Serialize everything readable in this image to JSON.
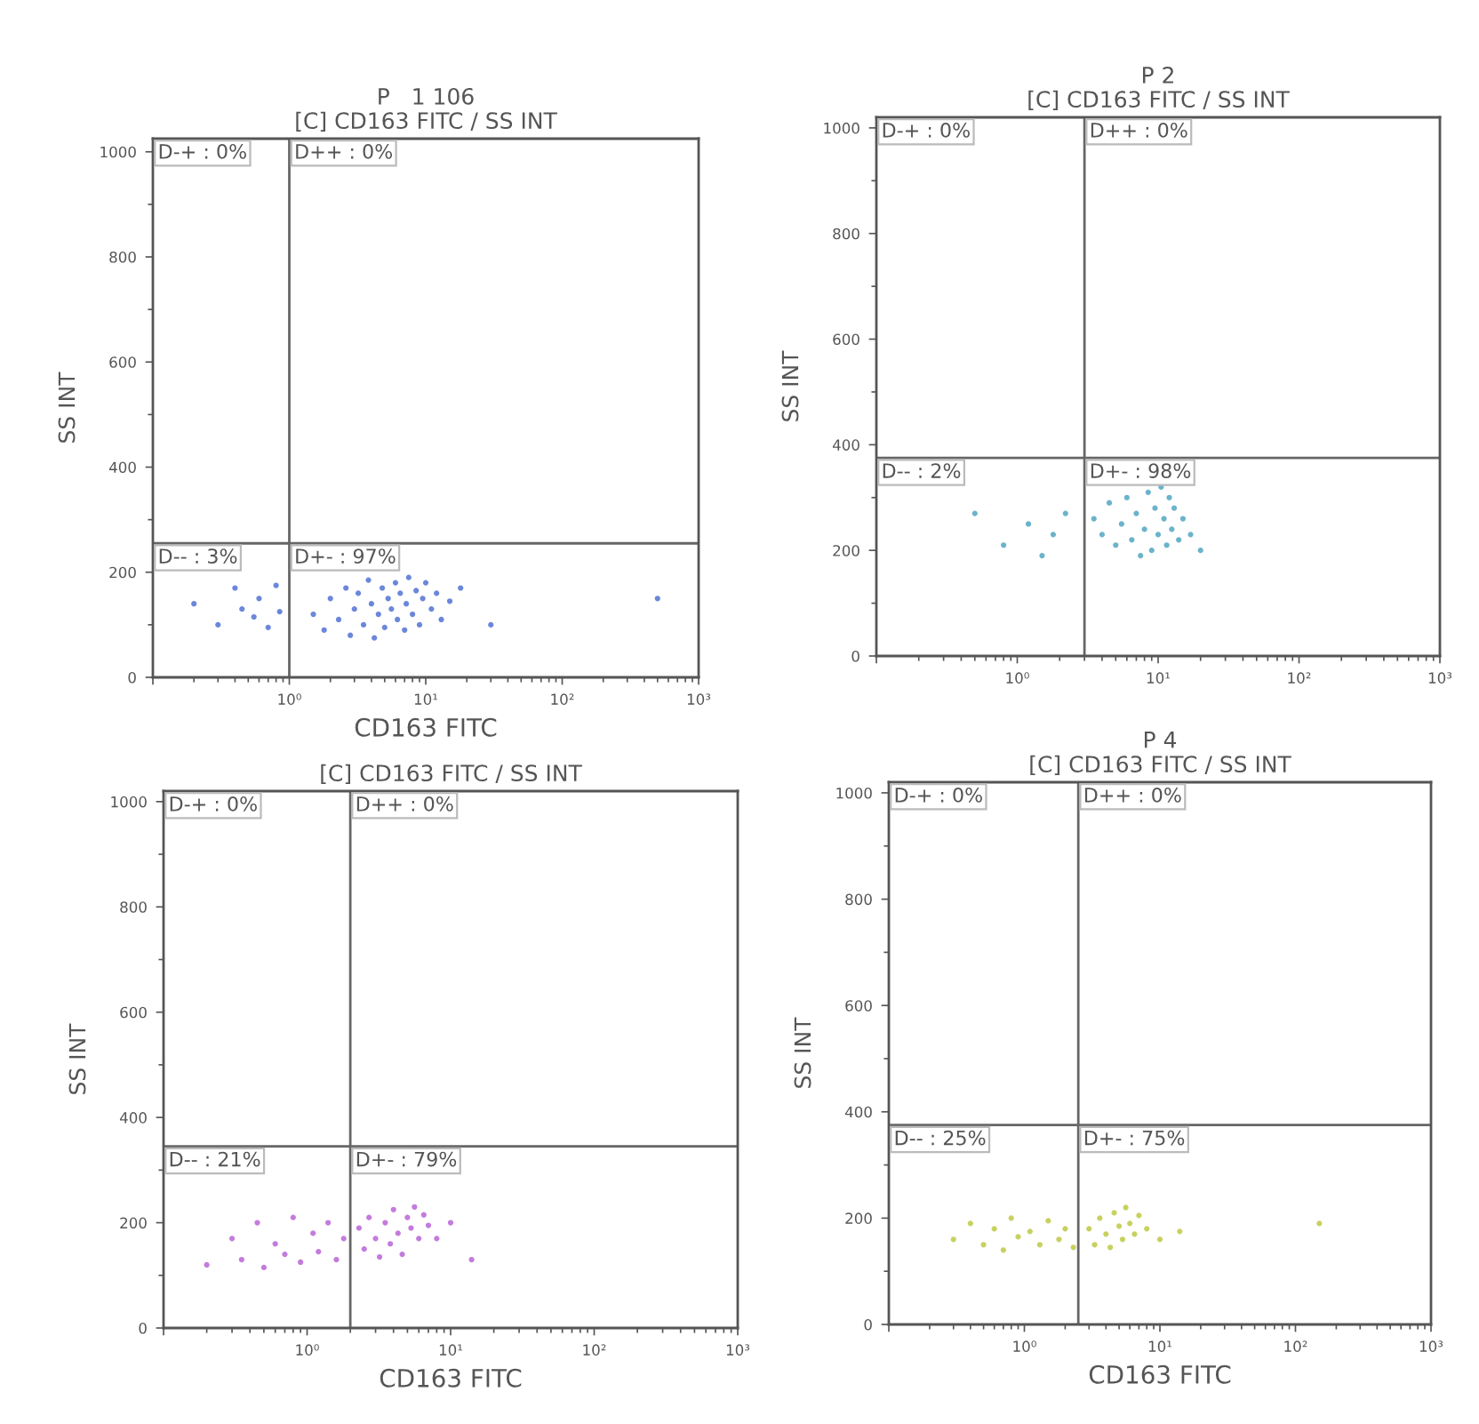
{
  "chart_data": [
    {
      "type": "scatter",
      "title": "P   1 106",
      "subtitle": "[C] CD163 FITC / SS INT",
      "xlabel": "CD163 FITC",
      "ylabel": "SS INT",
      "log": "x",
      "marker": "circle",
      "grid": false,
      "xlim": [
        0.1,
        1000
      ],
      "xticks": [
        {
          "value": 0.1,
          "label": null
        },
        {
          "value": 1,
          "label": "10⁰"
        },
        {
          "value": 10,
          "label": "10¹"
        },
        {
          "value": 100,
          "label": "10²"
        },
        {
          "value": 1000,
          "label": "10³"
        }
      ],
      "ylim": [
        0,
        1025
      ],
      "yticks": [
        0,
        200,
        400,
        600,
        800,
        1000
      ],
      "ref_lines": [
        {
          "axis": "x",
          "value": 1,
          "color": "#666666"
        },
        {
          "axis": "y",
          "value": 255,
          "color": "#666666"
        }
      ],
      "annotations": [
        "D-+ : 0%",
        "D++ : 0%",
        "D-- : 3%",
        "D+- : 97%"
      ],
      "series": [
        {
          "color": "#3a5fcd",
          "x": [
            0.2,
            0.3,
            0.4,
            0.45,
            0.55,
            0.6,
            0.7,
            0.8,
            0.85,
            1.5,
            1.8,
            2,
            2.3,
            2.6,
            2.8,
            3,
            3.2,
            3.5,
            3.8,
            4,
            4.2,
            4.5,
            4.8,
            5,
            5.3,
            5.6,
            6,
            6.2,
            6.5,
            7,
            7.2,
            7.5,
            8,
            8.5,
            9,
            9.5,
            10,
            11,
            12,
            13,
            15,
            18,
            30,
            500
          ],
          "values": [
            140,
            100,
            170,
            130,
            115,
            150,
            95,
            175,
            125,
            120,
            90,
            150,
            110,
            170,
            80,
            130,
            160,
            100,
            185,
            140,
            75,
            120,
            170,
            95,
            150,
            130,
            180,
            110,
            160,
            90,
            140,
            190,
            120,
            165,
            100,
            150,
            180,
            130,
            160,
            110,
            145,
            170,
            100,
            150
          ]
        }
      ]
    },
    {
      "type": "scatter",
      "title": "P 2",
      "subtitle": "[C] CD163 FITC / SS INT",
      "ylabel": "SS INT",
      "log": "x",
      "marker": "circle",
      "grid": false,
      "xlim": [
        0.1,
        1000
      ],
      "xticks": [
        {
          "value": 0.1,
          "label": null
        },
        {
          "value": 1,
          "label": "10⁰"
        },
        {
          "value": 10,
          "label": "10¹"
        },
        {
          "value": 100,
          "label": "10²"
        },
        {
          "value": 1000,
          "label": "10³"
        }
      ],
      "ylim": [
        0,
        1020
      ],
      "yticks": [
        0,
        200,
        400,
        600,
        800,
        1000
      ],
      "ref_lines": [
        {
          "axis": "x",
          "value": 3,
          "color": "#666666"
        },
        {
          "axis": "y",
          "value": 375,
          "color": "#666666"
        }
      ],
      "annotations": [
        "D-+ : 0%",
        "D++ : 0%",
        "D-- : 2%",
        "D+- : 98%"
      ],
      "series": [
        {
          "color": "#3a9ab8",
          "x": [
            0.5,
            0.8,
            1.2,
            1.5,
            1.8,
            2.2,
            3.5,
            4,
            4.5,
            5,
            5.5,
            6,
            6.5,
            7,
            7.5,
            8,
            8.5,
            9,
            9.5,
            10,
            10.5,
            11,
            11.5,
            12,
            12.5,
            13,
            14,
            15,
            17,
            20
          ],
          "values": [
            270,
            210,
            250,
            190,
            230,
            270,
            260,
            230,
            290,
            210,
            250,
            300,
            220,
            270,
            190,
            240,
            310,
            200,
            280,
            230,
            320,
            260,
            210,
            300,
            240,
            280,
            220,
            260,
            230,
            200
          ]
        }
      ]
    },
    {
      "type": "scatter",
      "subtitle": "[C] CD163 FITC / SS INT",
      "xlabel": "CD163 FITC",
      "ylabel": "SS INT",
      "log": "x",
      "marker": "circle",
      "grid": false,
      "xlim": [
        0.1,
        1000
      ],
      "xticks": [
        {
          "value": 0.1,
          "label": null
        },
        {
          "value": 1,
          "label": "10⁰"
        },
        {
          "value": 10,
          "label": "10¹"
        },
        {
          "value": 100,
          "label": "10²"
        },
        {
          "value": 1000,
          "label": "10³"
        }
      ],
      "ylim": [
        0,
        1020
      ],
      "yticks": [
        0,
        200,
        400,
        600,
        800,
        1000
      ],
      "ref_lines": [
        {
          "axis": "x",
          "value": 2,
          "color": "#666666"
        },
        {
          "axis": "y",
          "value": 345,
          "color": "#666666"
        }
      ],
      "annotations": [
        "D-+ : 0%",
        "D++ : 0%",
        "D-- : 21%",
        "D+- : 79%"
      ],
      "series": [
        {
          "color": "#b04fd0",
          "x": [
            0.2,
            0.3,
            0.35,
            0.45,
            0.5,
            0.6,
            0.7,
            0.8,
            0.9,
            1.1,
            1.2,
            1.4,
            1.6,
            1.8,
            2.3,
            2.5,
            2.7,
            3,
            3.2,
            3.5,
            3.8,
            4,
            4.3,
            4.6,
            5,
            5.3,
            5.6,
            6,
            6.5,
            7,
            8,
            10,
            14
          ],
          "values": [
            120,
            170,
            130,
            200,
            115,
            160,
            140,
            210,
            125,
            180,
            145,
            200,
            130,
            170,
            190,
            150,
            210,
            170,
            135,
            200,
            160,
            225,
            180,
            140,
            210,
            190,
            230,
            170,
            215,
            195,
            170,
            200,
            130
          ]
        }
      ]
    },
    {
      "type": "scatter",
      "title": "P 4",
      "subtitle": "[C] CD163 FITC / SS INT",
      "xlabel": "CD163 FITC",
      "ylabel": "SS INT",
      "log": "x",
      "marker": "circle",
      "grid": false,
      "xlim": [
        0.1,
        1000
      ],
      "xticks": [
        {
          "value": 0.1,
          "label": null
        },
        {
          "value": 1,
          "label": "10⁰"
        },
        {
          "value": 10,
          "label": "10¹"
        },
        {
          "value": 100,
          "label": "10²"
        },
        {
          "value": 1000,
          "label": "10³"
        }
      ],
      "ylim": [
        0,
        1020
      ],
      "yticks": [
        0,
        200,
        400,
        600,
        800,
        1000
      ],
      "ref_lines": [
        {
          "axis": "x",
          "value": 2.5,
          "color": "#666666"
        },
        {
          "axis": "y",
          "value": 375,
          "color": "#666666"
        }
      ],
      "annotations": [
        "D-+ : 0%",
        "D++ : 0%",
        "D-- : 25%",
        "D+- : 75%"
      ],
      "series": [
        {
          "color": "#b5c22a",
          "x": [
            0.3,
            0.4,
            0.5,
            0.6,
            0.7,
            0.8,
            0.9,
            1.1,
            1.3,
            1.5,
            1.8,
            2,
            2.3,
            3,
            3.3,
            3.6,
            4,
            4.3,
            4.6,
            5,
            5.3,
            5.6,
            6,
            6.5,
            7,
            8,
            10,
            14,
            150
          ],
          "values": [
            160,
            190,
            150,
            180,
            140,
            200,
            165,
            175,
            150,
            195,
            160,
            180,
            145,
            180,
            150,
            200,
            170,
            145,
            210,
            185,
            160,
            220,
            190,
            170,
            205,
            180,
            160,
            175,
            190
          ]
        }
      ]
    }
  ]
}
